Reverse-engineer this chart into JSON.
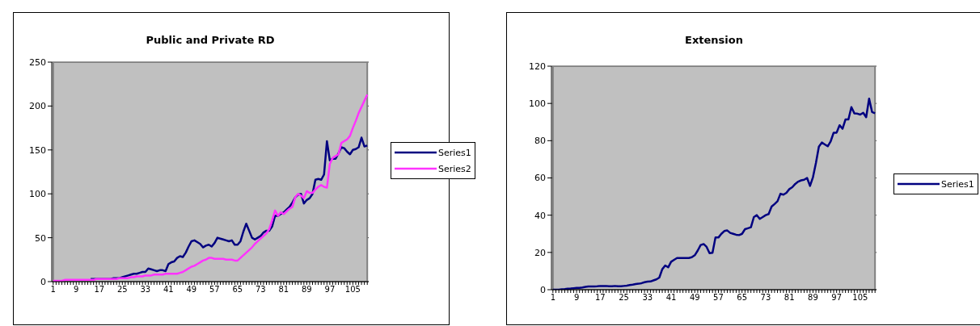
{
  "chart_data": [
    {
      "type": "line",
      "title": "Public and Private RD",
      "categories": [
        "1",
        null,
        null,
        null,
        null,
        null,
        null,
        null,
        "9",
        null,
        null,
        null,
        null,
        null,
        null,
        null,
        "17",
        null,
        null,
        null,
        null,
        null,
        null,
        null,
        "25",
        null,
        null,
        null,
        null,
        null,
        null,
        null,
        "33",
        null,
        null,
        null,
        null,
        null,
        null,
        null,
        "41",
        null,
        null,
        null,
        null,
        null,
        null,
        null,
        "49",
        null,
        null,
        null,
        null,
        null,
        null,
        null,
        "57",
        null,
        null,
        null,
        null,
        null,
        null,
        null,
        "65",
        null,
        null,
        null,
        null,
        null,
        null,
        null,
        "73",
        null,
        null,
        null,
        null,
        null,
        null,
        null,
        "81",
        null,
        null,
        null,
        null,
        null,
        null,
        null,
        "89",
        null,
        null,
        null,
        null,
        null,
        null,
        null,
        "97",
        null,
        null,
        null,
        null,
        null,
        null,
        null,
        "105",
        null,
        null,
        null,
        null,
        null
      ],
      "series": [
        {
          "name": "Series1",
          "color": "#000080",
          "values": [
            null,
            null,
            null,
            null,
            null,
            null,
            null,
            null,
            null,
            null,
            null,
            null,
            null,
            3,
            3,
            3,
            3,
            3,
            3,
            3,
            3,
            4,
            4,
            4,
            5,
            6,
            7,
            8,
            9,
            9,
            10,
            11,
            11,
            15,
            14,
            13,
            12,
            13,
            13,
            12,
            20,
            22,
            23,
            27,
            29,
            28,
            33,
            40,
            46,
            47,
            45,
            43,
            39,
            41,
            42,
            40,
            44,
            50,
            49,
            48,
            47,
            46,
            47,
            42,
            42,
            46,
            57,
            66,
            58,
            50,
            48,
            50,
            52,
            56,
            58,
            58,
            63,
            75,
            75,
            77,
            79,
            82,
            85,
            90,
            96,
            99,
            100,
            89,
            93,
            95,
            100,
            116,
            117,
            116,
            122,
            160,
            138,
            140,
            140,
            146,
            153,
            152,
            148,
            145,
            150,
            151,
            153,
            164,
            154,
            155
          ]
        },
        {
          "name": "Series2",
          "color": "#ff33ff",
          "values": [
            1,
            1,
            1,
            1,
            2,
            2,
            2,
            2,
            2,
            2,
            2,
            2,
            2,
            2,
            2,
            3,
            3,
            3,
            3,
            3,
            3,
            3,
            3,
            4,
            4,
            4,
            4,
            5,
            5,
            6,
            6,
            6,
            7,
            7,
            7,
            8,
            8,
            8,
            8,
            9,
            9,
            9,
            9,
            9,
            10,
            11,
            13,
            15,
            17,
            18,
            20,
            22,
            24,
            25,
            27,
            27,
            26,
            26,
            26,
            26,
            25,
            25,
            25,
            24,
            24,
            27,
            30,
            33,
            36,
            39,
            43,
            46,
            49,
            52,
            55,
            60,
            70,
            81,
            75,
            79,
            77,
            80,
            83,
            85,
            96,
            100,
            98,
            95,
            103,
            101,
            101,
            105,
            108,
            110,
            108,
            107,
            134,
            141,
            143,
            145,
            158,
            160,
            162,
            166,
            175,
            183,
            192,
            199,
            206,
            213
          ]
        }
      ],
      "ylim": [
        0,
        250
      ],
      "yticks": [
        0,
        50,
        100,
        150,
        200,
        250
      ],
      "grid": "y",
      "legend": "right",
      "marker": "none"
    },
    {
      "type": "line",
      "title": "Extension",
      "categories": [
        "1",
        null,
        null,
        null,
        null,
        null,
        null,
        null,
        "9",
        null,
        null,
        null,
        null,
        null,
        null,
        null,
        "17",
        null,
        null,
        null,
        null,
        null,
        null,
        null,
        "25",
        null,
        null,
        null,
        null,
        null,
        null,
        null,
        "33",
        null,
        null,
        null,
        null,
        null,
        null,
        null,
        "41",
        null,
        null,
        null,
        null,
        null,
        null,
        null,
        "49",
        null,
        null,
        null,
        null,
        null,
        null,
        null,
        "57",
        null,
        null,
        null,
        null,
        null,
        null,
        null,
        "65",
        null,
        null,
        null,
        null,
        null,
        null,
        null,
        "73",
        null,
        null,
        null,
        null,
        null,
        null,
        null,
        "81",
        null,
        null,
        null,
        null,
        null,
        null,
        null,
        "89",
        null,
        null,
        null,
        null,
        null,
        null,
        null,
        "97",
        null,
        null,
        null,
        null,
        null,
        null,
        null,
        "105",
        null,
        null,
        null,
        null,
        null
      ],
      "series": [
        {
          "name": "Series1",
          "color": "#000080",
          "values": [
            0,
            0,
            0,
            0.2,
            0.3,
            0.5,
            0.6,
            0.8,
            1,
            1,
            1.2,
            1.5,
            1.7,
            1.7,
            1.7,
            1.8,
            2,
            2,
            2,
            1.8,
            1.8,
            2,
            1.8,
            1.8,
            2,
            2.2,
            2.5,
            2.7,
            3,
            3.2,
            3.5,
            4,
            4.3,
            4.4,
            5,
            5.5,
            6.5,
            11,
            13,
            12,
            15,
            16,
            17,
            17,
            17,
            17,
            17,
            17.4,
            18.5,
            21,
            24,
            24.5,
            23,
            19.6,
            19.8,
            28,
            28,
            30,
            31.5,
            31.8,
            30.5,
            30,
            29.5,
            29.3,
            30,
            32.5,
            33,
            33.5,
            39,
            40,
            38,
            39,
            40,
            40.6,
            44.6,
            46,
            47.5,
            51.5,
            51,
            52,
            54,
            55,
            56.8,
            58,
            58.7,
            59,
            60,
            55.7,
            60.4,
            68,
            76.8,
            79,
            78,
            77,
            79.7,
            84.3,
            84.3,
            88.3,
            86.4,
            91.4,
            91.4,
            98,
            94.7,
            94.5,
            94,
            95,
            92.6,
            102.6,
            95.4,
            94.7
          ]
        }
      ],
      "ylim": [
        0,
        120
      ],
      "yticks": [
        0,
        20,
        40,
        60,
        80,
        100,
        120
      ],
      "grid": "y",
      "legend": "right",
      "marker": "none"
    }
  ]
}
